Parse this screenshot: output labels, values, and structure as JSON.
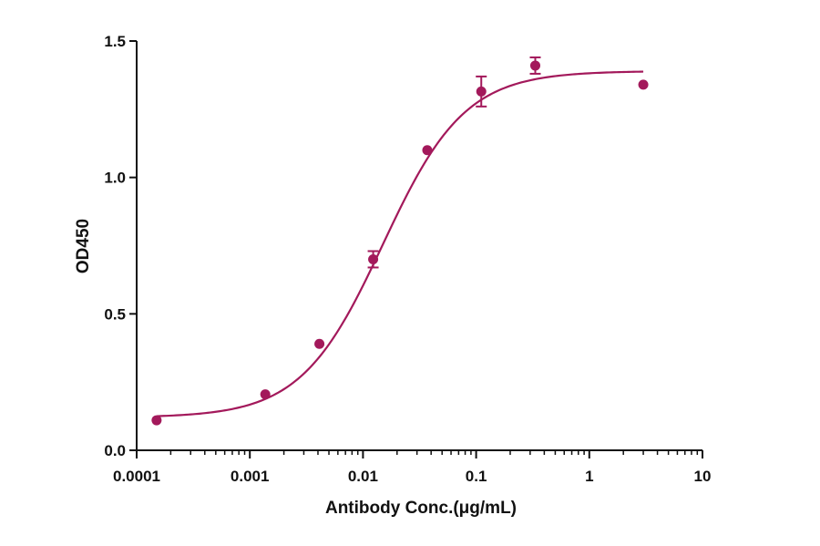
{
  "chart_data": {
    "type": "scatter",
    "title": "",
    "xlabel": "Antibody Conc.(μg/mL)",
    "ylabel": "OD450",
    "x_scale": "log",
    "xlim": [
      0.0001,
      10
    ],
    "ylim": [
      0,
      1.5
    ],
    "x_ticks": [
      0.0001,
      0.001,
      0.01,
      0.1,
      1,
      10
    ],
    "x_tick_labels": [
      "0.0001",
      "0.001",
      "0.01",
      "0.1",
      "1",
      "10"
    ],
    "y_ticks": [
      0,
      0.5,
      1.0,
      1.5
    ],
    "y_tick_labels": [
      "0.0",
      "0.5",
      "1.0",
      "1.5"
    ],
    "grid": false,
    "legend": "none",
    "series": [
      {
        "color": "#a3195b",
        "points": [
          {
            "x": 0.00015,
            "y": 0.11,
            "err": 0.0
          },
          {
            "x": 0.00137,
            "y": 0.205,
            "err": 0.0
          },
          {
            "x": 0.00412,
            "y": 0.39,
            "err": 0.0
          },
          {
            "x": 0.0123,
            "y": 0.7,
            "err": 0.03
          },
          {
            "x": 0.037,
            "y": 1.1,
            "err": 0.0
          },
          {
            "x": 0.111,
            "y": 1.315,
            "err": 0.055
          },
          {
            "x": 0.333,
            "y": 1.41,
            "err": 0.03
          },
          {
            "x": 3.0,
            "y": 1.34,
            "err": 0.0
          }
        ],
        "fit": {
          "model": "4PL",
          "bottom": 0.12,
          "top": 1.39,
          "ec50": 0.015,
          "hill": 1.2,
          "x_range": [
            0.00015,
            3.0
          ]
        }
      }
    ]
  }
}
